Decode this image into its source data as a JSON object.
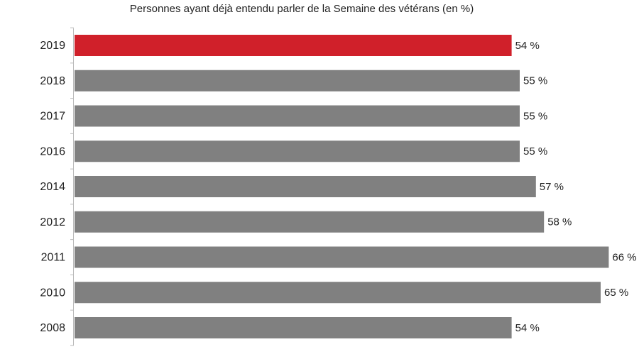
{
  "chart_data": {
    "type": "hbar",
    "title": "Personnes ayant déjà entendu parler de la Semaine des vétérans (en %)",
    "categories": [
      "2019",
      "2018",
      "2017",
      "2016",
      "2014",
      "2012",
      "2011",
      "2010",
      "2008"
    ],
    "values": [
      54,
      55,
      55,
      55,
      57,
      58,
      66,
      65,
      54
    ],
    "value_labels": [
      "54 %",
      "55 %",
      "55 %",
      "55 %",
      "57 %",
      "58 %",
      "66 %",
      "65 %",
      "54 %"
    ],
    "colors": [
      "#d0202a",
      "#808080",
      "#808080",
      "#808080",
      "#808080",
      "#808080",
      "#808080",
      "#808080",
      "#808080"
    ]
  }
}
